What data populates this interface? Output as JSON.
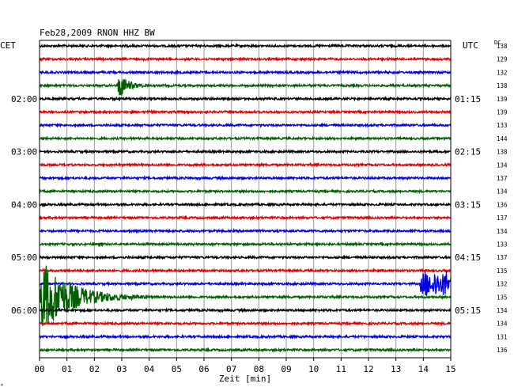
{
  "chart_data": {
    "type": "line",
    "title": "Feb28,2009   RNON HHZ BW",
    "left_axis_label": "CET",
    "right_axis_label": "UTC",
    "dc_label": "DC",
    "xlabel": "Zeit [min]",
    "footer_mark": "ᴿ",
    "x_ticks": [
      "00",
      "01",
      "02",
      "03",
      "04",
      "05",
      "06",
      "07",
      "08",
      "09",
      "10",
      "11",
      "12",
      "13",
      "14",
      "15"
    ],
    "xlim": [
      0,
      15
    ],
    "minutes_per_trace": 15,
    "trace_count": 24,
    "trace_colors": [
      "#000000",
      "#e00000",
      "#0000e0",
      "#006000"
    ],
    "left_time_labels": [
      {
        "trace": 4,
        "label": "02:00"
      },
      {
        "trace": 8,
        "label": "03:00"
      },
      {
        "trace": 12,
        "label": "04:00"
      },
      {
        "trace": 16,
        "label": "05:00"
      },
      {
        "trace": 20,
        "label": "06:00"
      }
    ],
    "right_time_labels": [
      {
        "trace": 4,
        "label": "01:15"
      },
      {
        "trace": 8,
        "label": "02:15"
      },
      {
        "trace": 12,
        "label": "03:15"
      },
      {
        "trace": 16,
        "label": "04:15"
      },
      {
        "trace": 20,
        "label": "05:15"
      }
    ],
    "dc_values": [
      138,
      129,
      132,
      138,
      139,
      139,
      133,
      144,
      138,
      134,
      137,
      134,
      136,
      137,
      134,
      133,
      137,
      135,
      132,
      135,
      134,
      134,
      131,
      136
    ],
    "events": [
      {
        "trace": 3,
        "start_min": 2.85,
        "end_min": 4.0,
        "peak": 2.2
      },
      {
        "trace": 18,
        "start_min": 13.9,
        "end_min": 15.0,
        "peak": 1.8,
        "sustained": true
      },
      {
        "trace": 19,
        "start_min": 0.0,
        "end_min": 4.0,
        "peak": 5.5
      }
    ]
  }
}
